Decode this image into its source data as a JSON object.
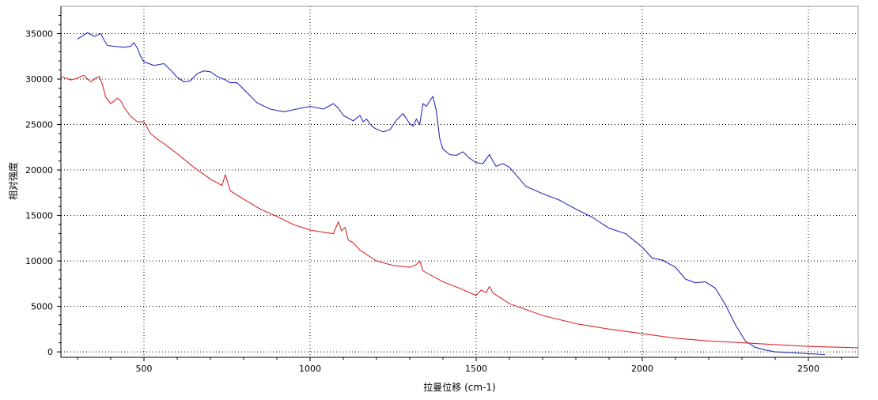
{
  "chart_data": {
    "type": "line",
    "title": "",
    "xlabel": "拉曼位移 (cm-1)",
    "ylabel": "相对强度",
    "xlim": [
      250,
      2650
    ],
    "ylim": [
      -600,
      38000
    ],
    "xticks": [
      500,
      1000,
      1500,
      2000,
      2500
    ],
    "yticks": [
      0,
      5000,
      10000,
      15000,
      20000,
      25000,
      30000,
      35000
    ],
    "grid": true,
    "legend": "none",
    "colors": {
      "blue": "#2b2bb8",
      "red": "#d92b2b",
      "grid": "#000000"
    },
    "series": [
      {
        "color": "#2b2bb8",
        "x": [
          300,
          330,
          350,
          370,
          380,
          390,
          410,
          440,
          460,
          470,
          480,
          490,
          500,
          530,
          560,
          580,
          600,
          620,
          640,
          660,
          680,
          700,
          720,
          740,
          760,
          780,
          800,
          840,
          880,
          920,
          960,
          1000,
          1040,
          1070,
          1085,
          1100,
          1130,
          1150,
          1160,
          1170,
          1180,
          1190,
          1200,
          1220,
          1240,
          1260,
          1280,
          1300,
          1310,
          1320,
          1330,
          1340,
          1350,
          1360,
          1370,
          1380,
          1390,
          1400,
          1420,
          1440,
          1460,
          1480,
          1500,
          1520,
          1540,
          1550,
          1560,
          1580,
          1600,
          1650,
          1700,
          1750,
          1800,
          1850,
          1900,
          1950,
          2000,
          2030,
          2060,
          2100,
          2130,
          2160,
          2190,
          2220,
          2250,
          2280,
          2310,
          2340,
          2370,
          2400,
          2450,
          2500,
          2550
        ],
        "y": [
          34400,
          35100,
          34700,
          35000,
          34300,
          33700,
          33600,
          33500,
          33600,
          34000,
          33400,
          32500,
          31900,
          31500,
          31700,
          31000,
          30200,
          29700,
          29800,
          30600,
          30900,
          30800,
          30300,
          30000,
          29600,
          29600,
          28900,
          27400,
          26700,
          26400,
          26700,
          27000,
          26700,
          27300,
          26800,
          26000,
          25400,
          26000,
          25300,
          25600,
          25100,
          24700,
          24500,
          24200,
          24400,
          25500,
          26200,
          25100,
          24800,
          25600,
          25000,
          27300,
          27000,
          27600,
          28100,
          26500,
          23500,
          22300,
          21700,
          21600,
          22000,
          21300,
          20800,
          20700,
          21700,
          21000,
          20400,
          20700,
          20300,
          18200,
          17400,
          16700,
          15700,
          14800,
          13600,
          13000,
          11500,
          10300,
          10100,
          9300,
          8000,
          7600,
          7700,
          7000,
          5200,
          3000,
          1200,
          500,
          200,
          0,
          -100,
          -200,
          -300
        ]
      },
      {
        "color": "#d92b2b",
        "x": [
          250,
          280,
          300,
          310,
          320,
          330,
          340,
          355,
          365,
          375,
          385,
          400,
          420,
          430,
          440,
          460,
          480,
          500,
          520,
          540,
          560,
          600,
          650,
          700,
          735,
          745,
          760,
          800,
          850,
          900,
          950,
          1000,
          1050,
          1070,
          1085,
          1095,
          1105,
          1115,
          1130,
          1150,
          1200,
          1250,
          1300,
          1320,
          1330,
          1340,
          1360,
          1400,
          1450,
          1500,
          1515,
          1530,
          1540,
          1550,
          1600,
          1700,
          1800,
          1900,
          2000,
          2100,
          2200,
          2300,
          2400,
          2500,
          2650
        ],
        "y": [
          30300,
          29900,
          30100,
          30300,
          30400,
          30000,
          29700,
          30100,
          30300,
          29400,
          28000,
          27300,
          27900,
          27600,
          26900,
          25900,
          25300,
          25300,
          24000,
          23400,
          22900,
          21800,
          20300,
          19000,
          18300,
          19500,
          17700,
          16800,
          15700,
          14900,
          14000,
          13400,
          13100,
          13000,
          14300,
          13300,
          13700,
          12300,
          12000,
          11200,
          10000,
          9500,
          9300,
          9600,
          10000,
          8900,
          8500,
          7700,
          7000,
          6200,
          6800,
          6500,
          7200,
          6500,
          5300,
          4000,
          3100,
          2500,
          2000,
          1500,
          1200,
          1000,
          800,
          600,
          450
        ]
      }
    ]
  }
}
